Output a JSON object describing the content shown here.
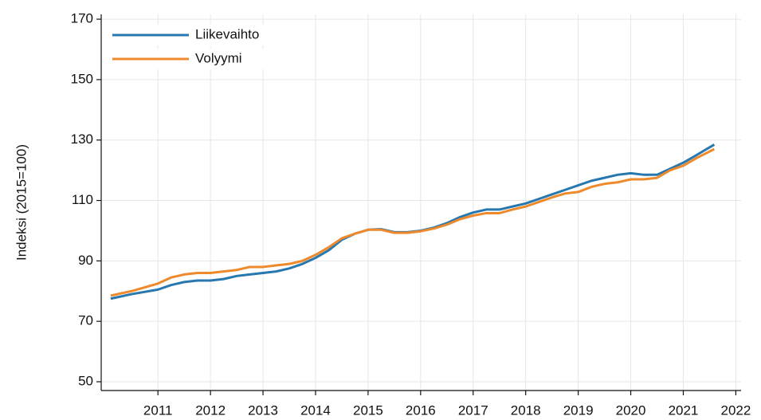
{
  "chart_data": {
    "type": "line",
    "y_label": "Indeksi (2015=100)",
    "x": [
      2010.1,
      2010.5,
      2011,
      2011.25,
      2011.5,
      2011.75,
      2012,
      2012.25,
      2012.5,
      2012.75,
      2013,
      2013.25,
      2013.5,
      2013.75,
      2014,
      2014.25,
      2014.5,
      2014.75,
      2015,
      2015.25,
      2015.5,
      2015.75,
      2016,
      2016.25,
      2016.5,
      2016.75,
      2017,
      2017.25,
      2017.5,
      2017.75,
      2018,
      2018.25,
      2018.5,
      2018.75,
      2019,
      2019.25,
      2019.5,
      2019.75,
      2020,
      2020.25,
      2020.5,
      2020.75,
      2021,
      2021.25,
      2021.59
    ],
    "series": [
      {
        "name": "Liikevaihto",
        "color": "#2878b0",
        "values": [
          77.5,
          79,
          80.5,
          82,
          83,
          83.5,
          83.5,
          84,
          85,
          85.5,
          86,
          86.5,
          87.5,
          89,
          91,
          93.5,
          97,
          99,
          100.3,
          100.5,
          99.5,
          99.5,
          100,
          101,
          102.5,
          104.5,
          106,
          107,
          107,
          108,
          109,
          110.5,
          112,
          113.5,
          115,
          116.5,
          117.5,
          118.5,
          119,
          118.5,
          118.5,
          120.5,
          122.5,
          125,
          128.5
        ]
      },
      {
        "name": "Volyymi",
        "color": "#ee8a2c",
        "values": [
          78.5,
          80,
          82.5,
          84.5,
          85.5,
          86,
          86,
          86.5,
          87,
          88,
          88,
          88.5,
          89,
          90,
          92,
          94.5,
          97.5,
          99,
          100.3,
          100.3,
          99.3,
          99.3,
          99.8,
          100.7,
          102,
          103.8,
          105,
          105.8,
          105.8,
          107,
          108,
          109.5,
          111,
          112.3,
          112.8,
          114.5,
          115.5,
          116,
          117,
          117,
          117.5,
          120,
          121.5,
          124,
          127
        ]
      }
    ],
    "xlim": [
      2009.92,
      2022.1
    ],
    "xticks": [
      2011,
      2012,
      2013,
      2014,
      2015,
      2016,
      2017,
      2018,
      2019,
      2020,
      2021,
      2022
    ],
    "ylim": [
      47.1,
      171.6
    ],
    "yticks": [
      50,
      70,
      90,
      110,
      130,
      150,
      170
    ],
    "grid": true,
    "legend": "upper left"
  }
}
